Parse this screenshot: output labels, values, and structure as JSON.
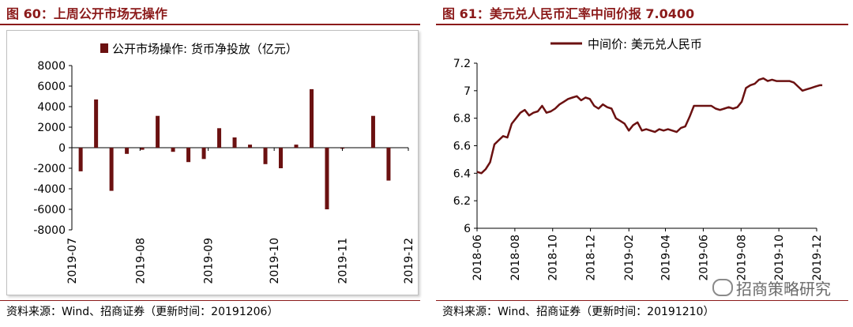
{
  "left": {
    "title": "图 60：上周公开市场无操作",
    "source": "资料来源：Wind、招商证券（更新时间：20191206）",
    "chart_data": {
      "type": "bar",
      "title": "",
      "legend": "公开市场操作: 货币净投放（亿元）",
      "legend_placement": "top",
      "ylim": [
        -8000,
        8000
      ],
      "yticks": [
        8000,
        6000,
        4000,
        2000,
        0,
        -2000,
        -4000,
        -6000,
        -8000
      ],
      "xticks": [
        "2019-07",
        "2019-08",
        "2019-09",
        "2019-10",
        "2019-11",
        "2019-12"
      ],
      "color": "#6b1111",
      "series": [
        {
          "points": [
            {
              "date": "2019-07-05",
              "value": -2300
            },
            {
              "date": "2019-07-12",
              "value": 4700
            },
            {
              "date": "2019-07-19",
              "value": -4200
            },
            {
              "date": "2019-07-26",
              "value": -600
            },
            {
              "date": "2019-08-02",
              "value": -200
            },
            {
              "date": "2019-08-09",
              "value": 3100
            },
            {
              "date": "2019-08-16",
              "value": -400
            },
            {
              "date": "2019-08-23",
              "value": -1400
            },
            {
              "date": "2019-08-30",
              "value": -1100
            },
            {
              "date": "2019-09-06",
              "value": 1900
            },
            {
              "date": "2019-09-13",
              "value": 1000
            },
            {
              "date": "2019-09-20",
              "value": 300
            },
            {
              "date": "2019-09-27",
              "value": -1600
            },
            {
              "date": "2019-10-04",
              "value": -2000
            },
            {
              "date": "2019-10-11",
              "value": 300
            },
            {
              "date": "2019-10-18",
              "value": 5700
            },
            {
              "date": "2019-10-25",
              "value": -6000
            },
            {
              "date": "2019-11-01",
              "value": -100
            },
            {
              "date": "2019-11-15",
              "value": 3100
            },
            {
              "date": "2019-11-22",
              "value": -3200
            }
          ]
        }
      ]
    }
  },
  "right": {
    "title": "图 61：美元兑人民币汇率中间价报 7.0400",
    "source": "资料来源：Wind、招商证券（更新时间：20191210）",
    "watermark": "招商策略研究",
    "chart_data": {
      "type": "line",
      "title": "",
      "legend": "中间价: 美元兑人民币",
      "legend_placement": "top",
      "ylim": [
        6,
        7.2
      ],
      "yticks": [
        7.2,
        7,
        6.8,
        6.6,
        6.4,
        6.2,
        6
      ],
      "xticks": [
        "2018-06",
        "2018-08",
        "2018-10",
        "2018-12",
        "2019-02",
        "2019-04",
        "2019-06",
        "2019-08",
        "2019-10",
        "2019-12"
      ],
      "color": "#6b1111",
      "series": [
        {
          "points": [
            [
              "2018-06-01",
              6.41
            ],
            [
              "2018-06-08",
              6.4
            ],
            [
              "2018-06-15",
              6.43
            ],
            [
              "2018-06-22",
              6.48
            ],
            [
              "2018-06-29",
              6.61
            ],
            [
              "2018-07-06",
              6.64
            ],
            [
              "2018-07-13",
              6.67
            ],
            [
              "2018-07-20",
              6.66
            ],
            [
              "2018-07-27",
              6.76
            ],
            [
              "2018-08-03",
              6.8
            ],
            [
              "2018-08-10",
              6.84
            ],
            [
              "2018-08-17",
              6.86
            ],
            [
              "2018-08-24",
              6.82
            ],
            [
              "2018-08-31",
              6.84
            ],
            [
              "2018-09-07",
              6.85
            ],
            [
              "2018-09-14",
              6.89
            ],
            [
              "2018-09-21",
              6.84
            ],
            [
              "2018-09-28",
              6.85
            ],
            [
              "2018-10-05",
              6.87
            ],
            [
              "2018-10-12",
              6.9
            ],
            [
              "2018-10-19",
              6.92
            ],
            [
              "2018-10-26",
              6.94
            ],
            [
              "2018-11-02",
              6.95
            ],
            [
              "2018-11-09",
              6.96
            ],
            [
              "2018-11-16",
              6.93
            ],
            [
              "2018-11-23",
              6.95
            ],
            [
              "2018-11-30",
              6.94
            ],
            [
              "2018-12-07",
              6.89
            ],
            [
              "2018-12-14",
              6.87
            ],
            [
              "2018-12-21",
              6.9
            ],
            [
              "2018-12-28",
              6.88
            ],
            [
              "2019-01-04",
              6.87
            ],
            [
              "2019-01-11",
              6.8
            ],
            [
              "2019-01-18",
              6.78
            ],
            [
              "2019-01-25",
              6.76
            ],
            [
              "2019-02-01",
              6.71
            ],
            [
              "2019-02-08",
              6.75
            ],
            [
              "2019-02-15",
              6.77
            ],
            [
              "2019-02-22",
              6.71
            ],
            [
              "2019-03-01",
              6.72
            ],
            [
              "2019-03-08",
              6.71
            ],
            [
              "2019-03-15",
              6.7
            ],
            [
              "2019-03-22",
              6.72
            ],
            [
              "2019-03-29",
              6.71
            ],
            [
              "2019-04-05",
              6.72
            ],
            [
              "2019-04-12",
              6.71
            ],
            [
              "2019-04-19",
              6.7
            ],
            [
              "2019-04-26",
              6.73
            ],
            [
              "2019-05-03",
              6.74
            ],
            [
              "2019-05-10",
              6.81
            ],
            [
              "2019-05-17",
              6.89
            ],
            [
              "2019-05-24",
              6.89
            ],
            [
              "2019-05-31",
              6.89
            ],
            [
              "2019-06-07",
              6.89
            ],
            [
              "2019-06-14",
              6.89
            ],
            [
              "2019-06-21",
              6.87
            ],
            [
              "2019-06-28",
              6.86
            ],
            [
              "2019-07-05",
              6.87
            ],
            [
              "2019-07-12",
              6.88
            ],
            [
              "2019-07-19",
              6.87
            ],
            [
              "2019-07-26",
              6.88
            ],
            [
              "2019-08-02",
              6.92
            ],
            [
              "2019-08-09",
              7.02
            ],
            [
              "2019-08-16",
              7.04
            ],
            [
              "2019-08-23",
              7.05
            ],
            [
              "2019-08-30",
              7.08
            ],
            [
              "2019-09-06",
              7.09
            ],
            [
              "2019-09-13",
              7.07
            ],
            [
              "2019-09-20",
              7.08
            ],
            [
              "2019-09-27",
              7.07
            ],
            [
              "2019-10-04",
              7.07
            ],
            [
              "2019-10-11",
              7.07
            ],
            [
              "2019-10-18",
              7.07
            ],
            [
              "2019-10-25",
              7.06
            ],
            [
              "2019-11-01",
              7.03
            ],
            [
              "2019-11-08",
              7.0
            ],
            [
              "2019-11-15",
              7.01
            ],
            [
              "2019-11-22",
              7.02
            ],
            [
              "2019-11-29",
              7.03
            ],
            [
              "2019-12-06",
              7.04
            ],
            [
              "2019-12-10",
              7.04
            ]
          ]
        }
      ]
    }
  }
}
